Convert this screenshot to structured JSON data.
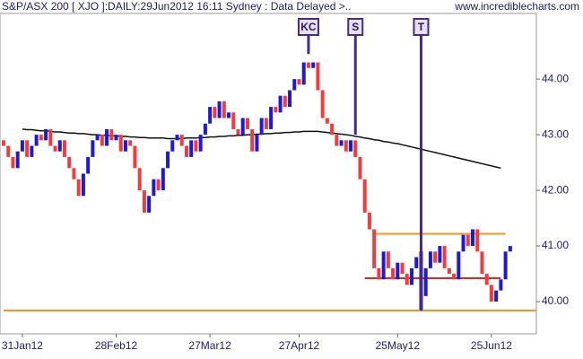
{
  "chart_data": {
    "type": "ohlc",
    "title": "S&P/ASX 200 [ XJO ]:DAILY:29Jun2012 16:11 Sydney : Data Delayed >..",
    "source": "www.incrediblecharts.com",
    "categories": [
      null,
      null,
      null,
      null,
      "31Jan12",
      null,
      null,
      null,
      null,
      null,
      null,
      null,
      null,
      null,
      null,
      null,
      null,
      null,
      null,
      null,
      null,
      null,
      null,
      null,
      "28Feb12",
      null,
      null,
      null,
      null,
      null,
      null,
      null,
      null,
      null,
      null,
      null,
      null,
      null,
      null,
      null,
      null,
      null,
      null,
      null,
      "27Mar12",
      null,
      null,
      null,
      null,
      null,
      null,
      null,
      null,
      null,
      null,
      null,
      null,
      null,
      null,
      null,
      null,
      null,
      null,
      "27Apr12",
      null,
      null,
      null,
      null,
      null,
      null,
      null,
      null,
      null,
      null,
      null,
      null,
      null,
      null,
      null,
      null,
      null,
      null,
      null,
      null,
      "25May12",
      null,
      null,
      null,
      null,
      null,
      null,
      null,
      null,
      null,
      null,
      null,
      null,
      null,
      null,
      null,
      null,
      null,
      null,
      null,
      "25Jun12",
      null,
      null,
      null,
      null
    ],
    "open": [
      42.9,
      42.8,
      42.6,
      42.4,
      42.7,
      42.9,
      42.6,
      42.8,
      43.0,
      42.9,
      43.1,
      42.8,
      42.7,
      42.9,
      42.6,
      42.4,
      42.2,
      41.9,
      42.3,
      42.6,
      42.9,
      43.0,
      42.8,
      43.1,
      42.9,
      43.0,
      42.7,
      42.9,
      42.8,
      42.4,
      42.0,
      41.6,
      41.9,
      42.2,
      42.0,
      42.4,
      42.7,
      42.9,
      43.0,
      42.8,
      42.6,
      42.9,
      42.7,
      43.0,
      43.2,
      43.5,
      43.3,
      43.6,
      43.3,
      43.4,
      43.1,
      43.0,
      43.3,
      43.1,
      42.7,
      43.0,
      43.3,
      43.1,
      43.5,
      43.4,
      43.7,
      43.5,
      43.8,
      44.0,
      43.9,
      44.3,
      44.2,
      44.3,
      43.8,
      43.3,
      43.2,
      43.0,
      42.8,
      42.9,
      42.7,
      42.9,
      42.6,
      42.2,
      41.6,
      41.3,
      40.6,
      40.4,
      40.9,
      40.6,
      40.4,
      40.7,
      40.5,
      40.3,
      40.6,
      39.85,
      40.1,
      40.6,
      40.9,
      40.7,
      41.0,
      40.6,
      40.5,
      40.4,
      40.9,
      41.2,
      41.0,
      41.3,
      40.9,
      40.5,
      40.3,
      40.0,
      40.2,
      40.4,
      40.9
    ],
    "close": [
      42.8,
      42.6,
      42.4,
      42.7,
      42.9,
      42.6,
      42.8,
      43.0,
      42.9,
      43.1,
      42.8,
      42.7,
      42.9,
      42.6,
      42.4,
      42.2,
      41.9,
      42.3,
      42.6,
      42.9,
      43.0,
      42.8,
      43.1,
      42.9,
      43.0,
      42.7,
      42.9,
      42.8,
      42.4,
      42.0,
      41.6,
      41.9,
      42.2,
      42.0,
      42.4,
      42.7,
      42.9,
      43.0,
      42.8,
      42.6,
      42.9,
      42.7,
      43.0,
      43.2,
      43.5,
      43.3,
      43.6,
      43.3,
      43.4,
      43.1,
      43.0,
      43.3,
      43.1,
      42.7,
      43.0,
      43.3,
      43.1,
      43.5,
      43.4,
      43.7,
      43.5,
      43.8,
      44.0,
      43.9,
      44.3,
      44.2,
      44.3,
      43.8,
      43.3,
      43.2,
      43.0,
      42.8,
      42.9,
      42.7,
      42.9,
      42.6,
      42.2,
      41.6,
      41.3,
      40.6,
      40.4,
      40.9,
      40.6,
      40.4,
      40.7,
      40.5,
      40.3,
      40.6,
      40.8,
      40.9,
      40.6,
      40.9,
      40.7,
      41.0,
      40.6,
      40.5,
      40.4,
      40.9,
      41.2,
      41.0,
      41.3,
      40.9,
      40.5,
      40.3,
      40.0,
      40.2,
      40.4,
      40.9,
      41.0
    ],
    "up_color": "#1c1ad8",
    "down_color": "#f23c3c",
    "moving_average": {
      "color": "#111111",
      "values": [
        null,
        null,
        null,
        null,
        43.1,
        43.09,
        43.09,
        43.08,
        43.07,
        43.07,
        43.06,
        43.05,
        43.05,
        43.04,
        43.03,
        43.03,
        43.02,
        43.02,
        43.01,
        43.0,
        43.0,
        42.99,
        42.99,
        42.98,
        42.98,
        42.97,
        42.97,
        42.96,
        42.96,
        42.95,
        42.95,
        42.94,
        42.94,
        42.94,
        42.94,
        42.93,
        42.93,
        42.93,
        42.93,
        42.94,
        42.94,
        42.94,
        42.95,
        42.95,
        42.96,
        42.96,
        42.97,
        42.97,
        42.98,
        42.98,
        42.99,
        42.99,
        43.0,
        43.0,
        43.01,
        43.01,
        43.02,
        43.02,
        43.03,
        43.03,
        43.04,
        43.04,
        43.05,
        43.05,
        43.06,
        43.06,
        43.06,
        43.06,
        43.05,
        43.04,
        43.03,
        43.02,
        43.01,
        43.0,
        42.99,
        42.97,
        42.96,
        42.94,
        42.93,
        42.91,
        42.9,
        42.88,
        42.87,
        42.85,
        42.84,
        42.82,
        42.8,
        42.78,
        42.76,
        42.74,
        42.72,
        42.7,
        42.68,
        42.66,
        42.64,
        42.62,
        42.6,
        42.58,
        42.56,
        42.54,
        42.52,
        42.5,
        42.48,
        42.46,
        42.44,
        42.42,
        42.4,
        null,
        null
      ]
    },
    "levels": [
      {
        "value": 39.84,
        "color": "#f7941d",
        "from": 0,
        "to": 114
      },
      {
        "value": 41.22,
        "color": "#f7941d",
        "from": 79,
        "to": 107
      },
      {
        "value": 40.42,
        "color": "#e8251f",
        "from": 77,
        "to": 106
      }
    ],
    "markers": [
      {
        "label": "KC",
        "index": 65,
        "end": 44.45
      },
      {
        "label": "S",
        "index": 75,
        "end": 43.0
      },
      {
        "label": "T",
        "index": 89,
        "end": 39.84
      }
    ],
    "marker_color": "#4a2a80",
    "ylim": [
      39.42,
      45.18
    ],
    "yticks": [
      {
        "value": 40,
        "label": "40.00"
      },
      {
        "value": 41,
        "label": "41.00"
      },
      {
        "value": 42,
        "label": "42.00"
      },
      {
        "value": 43,
        "label": "43.00"
      },
      {
        "value": 44,
        "label": "44.00"
      }
    ]
  }
}
